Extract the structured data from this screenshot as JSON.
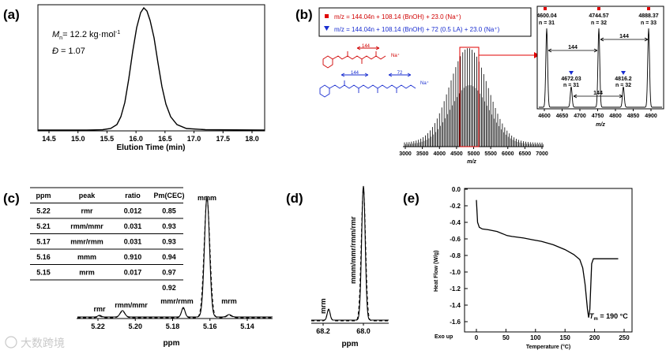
{
  "panel_labels": {
    "a": "(a)",
    "b": "(b)",
    "c": "(c)",
    "d": "(d)",
    "e": "(e)"
  },
  "panel_a": {
    "mn_symbol": "M",
    "mn_sub": "n",
    "mn_value": "= 12.2 kg·mol",
    "mn_sup": "-1",
    "dispersity_symbol": "Đ",
    "dispersity_value": "= 1.07",
    "xlabel": "Elution Time (min)",
    "xticks": [
      "14.5",
      "15.0",
      "15.5",
      "16.0",
      "16.5",
      "17.0",
      "17.5",
      "18.0"
    ]
  },
  "panel_b": {
    "legend": {
      "red": "m/z = 144.04n + 108.14 (BnOH) + 23.0 (Na⁺)",
      "blue": "m/z = 144.04n + 108.14 (BnOH) + 72 (0.5 LA) + 23.0 (Na⁺)"
    },
    "structure_red_label": "144",
    "structure_red_na": "Na⁺",
    "structure_blue_label1": "144",
    "structure_blue_label2": "72",
    "structure_blue_na": "Na⁺",
    "main_xticks": [
      "3000",
      "3500",
      "4000",
      "4500",
      "5000",
      "5500",
      "6000",
      "6500",
      "7000"
    ],
    "main_xlabel": "m/z",
    "inset_xticks": [
      "4600",
      "4650",
      "4700",
      "4750",
      "4800",
      "4850",
      "4900"
    ],
    "inset_xlabel": "m/z",
    "inset_peaks": [
      {
        "mz": "4600.04",
        "n": "n = 31"
      },
      {
        "mz": "4744.57",
        "n": "n = 32"
      },
      {
        "mz": "4888.37",
        "n": "n = 33"
      },
      {
        "mz": "4672.03",
        "n": "n = 31"
      },
      {
        "mz": "4816.2",
        "n": "n = 32"
      }
    ],
    "inset_spacing": [
      "144",
      "144",
      "144"
    ]
  },
  "panel_c": {
    "table": {
      "headers": [
        "ppm",
        "peak",
        "ratio",
        "Pm(CEC)"
      ],
      "rows": [
        [
          "5.22",
          "rmr",
          "0.012",
          "0.85"
        ],
        [
          "5.21",
          "rmm/mmr",
          "0.031",
          "0.93"
        ],
        [
          "5.17",
          "mmr/rmm",
          "0.031",
          "0.93"
        ],
        [
          "5.16",
          "mmm",
          "0.910",
          "0.94"
        ],
        [
          "5.15",
          "mrm",
          "0.017",
          "0.97"
        ],
        [
          "",
          "",
          "",
          "0.92"
        ]
      ]
    },
    "peak_labels": {
      "mmm": "mmm",
      "rmr": "rmr",
      "rmm_mmr": "rmm/mmr",
      "mmr_rmm": "mmr/rmm",
      "mrm": "mrm"
    },
    "xticks": [
      "5.22",
      "5.20",
      "5.18",
      "5.16",
      "5.14"
    ],
    "xlabel": "ppm"
  },
  "panel_d": {
    "peak_main": "mmm/mmr/rmm/rmr",
    "peak_minor": "mrm",
    "xticks": [
      "68.2",
      "68.0"
    ],
    "xlabel": "ppm"
  },
  "panel_e": {
    "ylabel": "Heat Flow (W/g)",
    "xlabel": "Temperature (°C)",
    "exo": "Exo up",
    "tm_label": "T",
    "tm_sub": "m",
    "tm_value": " = 190 °C",
    "yticks": [
      "0.0",
      "-0.2",
      "-0.4",
      "-0.6",
      "-0.8",
      "-1.0",
      "-1.2",
      "-1.4",
      "-1.6"
    ],
    "xticks": [
      "0",
      "50",
      "100",
      "150",
      "200",
      "250"
    ]
  },
  "watermark": "大数跨境"
}
